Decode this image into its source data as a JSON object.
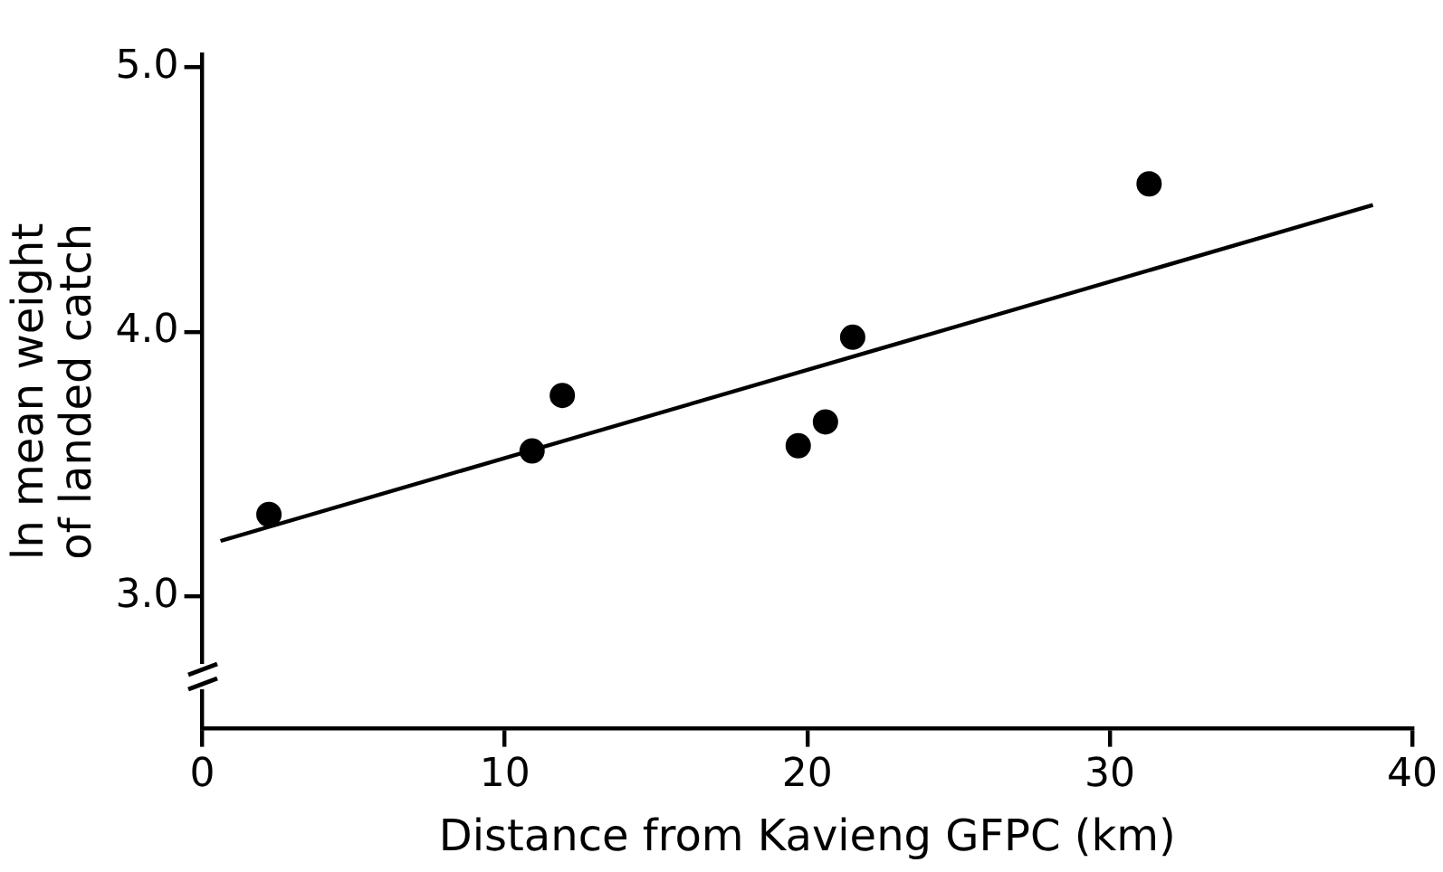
{
  "chart_data": {
    "type": "scatter",
    "xlabel": "Distance from Kavieng GFPC (km)",
    "ylabel": "ln mean weight of landed catch",
    "xlim": [
      0,
      40
    ],
    "xticks": [
      0,
      10,
      20,
      30,
      40
    ],
    "ylim": [
      2.5,
      5.05
    ],
    "yticks": [
      {
        "value": 3,
        "label": "3.0"
      },
      {
        "value": 4,
        "label": "4.0"
      },
      {
        "value": 5,
        "label": "5.0"
      }
    ],
    "series": [
      {
        "type": "scatter",
        "color": "#000000",
        "marker": "circle",
        "x": [
          2.2,
          10.9,
          11.9,
          19.7,
          20.6,
          21.5,
          31.3
        ],
        "values": [
          3.31,
          3.55,
          3.76,
          3.57,
          3.66,
          3.98,
          4.56
        ]
      },
      {
        "type": "line",
        "color": "#000000",
        "marker": "none",
        "x": [
          0.6,
          38.7
        ],
        "values": [
          3.21,
          4.48
        ]
      }
    ]
  }
}
